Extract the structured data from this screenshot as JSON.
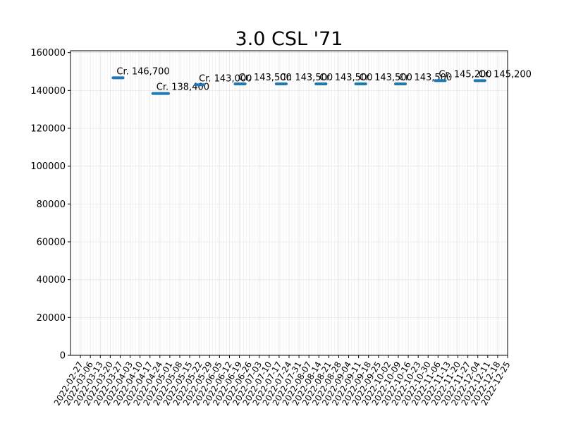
{
  "chart_data": {
    "type": "line",
    "title": "3.0 CSL '71",
    "xlabel": "",
    "ylabel": "",
    "ylim": [
      0,
      161000
    ],
    "y_ticks": [
      0,
      20000,
      40000,
      60000,
      80000,
      100000,
      120000,
      140000,
      160000
    ],
    "xlim": [
      "2022-02-20",
      "2022-12-25"
    ],
    "x_tick_labels": [
      "2022-02-27",
      "2022-03-06",
      "2022-03-13",
      "2022-03-20",
      "2022-03-27",
      "2022-04-03",
      "2022-04-10",
      "2022-04-17",
      "2022-04-24",
      "2022-05-01",
      "2022-05-08",
      "2022-05-15",
      "2022-05-22",
      "2022-05-29",
      "2022-06-05",
      "2022-06-12",
      "2022-06-19",
      "2022-06-26",
      "2022-07-03",
      "2022-07-10",
      "2022-07-17",
      "2022-07-24",
      "2022-07-31",
      "2022-08-07",
      "2022-08-14",
      "2022-08-21",
      "2022-08-28",
      "2022-09-04",
      "2022-09-11",
      "2022-09-18",
      "2022-09-25",
      "2022-10-02",
      "2022-10-09",
      "2022-10-16",
      "2022-10-23",
      "2022-10-30",
      "2022-11-06",
      "2022-11-13",
      "2022-11-20",
      "2022-11-27",
      "2022-12-04",
      "2022-12-11",
      "2022-12-18",
      "2022-12-25"
    ],
    "grid": true,
    "color": "#1f77b4",
    "segments": [
      {
        "x_start": "2022-03-22",
        "x_end": "2022-03-29",
        "y": 146700,
        "label": "Cr. 146,700"
      },
      {
        "x_start": "2022-04-19",
        "x_end": "2022-04-30",
        "y": 138400,
        "label": "Cr. 138,400"
      },
      {
        "x_start": "2022-05-19",
        "x_end": "2022-05-25",
        "y": 143000,
        "label": "Cr. 143,000"
      },
      {
        "x_start": "2022-06-16",
        "x_end": "2022-06-23",
        "y": 143500,
        "label": "Cr. 143,500"
      },
      {
        "x_start": "2022-07-15",
        "x_end": "2022-07-22",
        "y": 143500,
        "label": "Cr. 143,500"
      },
      {
        "x_start": "2022-08-12",
        "x_end": "2022-08-19",
        "y": 143500,
        "label": "Cr. 143,500"
      },
      {
        "x_start": "2022-09-09",
        "x_end": "2022-09-16",
        "y": 143500,
        "label": "Cr. 143,500"
      },
      {
        "x_start": "2022-10-07",
        "x_end": "2022-10-14",
        "y": 143500,
        "label": "Cr. 143,500"
      },
      {
        "x_start": "2022-11-04",
        "x_end": "2022-11-11",
        "y": 145200,
        "label": "Cr. 145,200"
      },
      {
        "x_start": "2022-12-02",
        "x_end": "2022-12-09",
        "y": 145200,
        "label": "Cr. 145,200"
      }
    ]
  }
}
